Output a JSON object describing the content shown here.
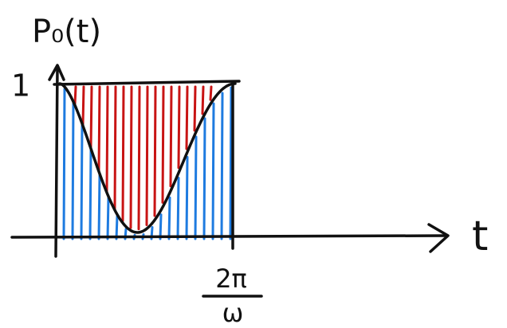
{
  "y_label": "P₀(t)",
  "y_tick": "1",
  "x_label": "t",
  "x_tick": {
    "numerator": "2π",
    "denominator": "ω"
  }
}
